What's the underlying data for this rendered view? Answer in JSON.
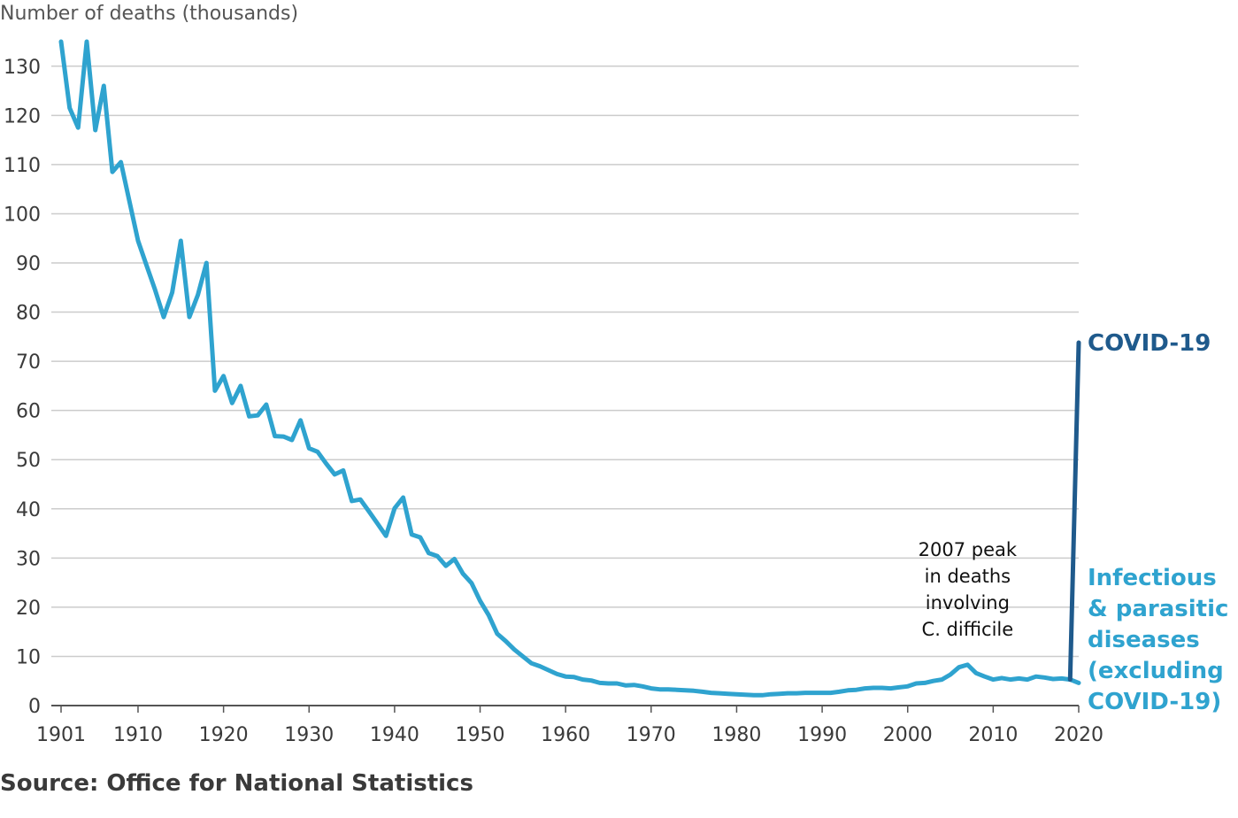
{
  "chart_data": {
    "type": "line",
    "ylabel": "Number of deaths (thousands)",
    "xlim": [
      1901,
      2020
    ],
    "ylim": [
      0,
      135
    ],
    "yticks": [
      0,
      10,
      20,
      30,
      40,
      50,
      60,
      70,
      80,
      90,
      100,
      110,
      120,
      130
    ],
    "xticks": [
      1901,
      1910,
      1920,
      1930,
      1940,
      1950,
      1960,
      1970,
      1980,
      1990,
      2000,
      2010,
      2020
    ],
    "grid": "horizontal",
    "colors": {
      "infectious": "#2fa3cf",
      "covid": "#1f5a8c",
      "grid": "#cccccc",
      "axis": "#555555"
    },
    "series": [
      {
        "name": "Infectious & parasitic diseases (excluding COVID-19)",
        "label_lines": [
          "Infectious",
          "& parasitic",
          "diseases",
          "(excluding",
          "COVID-19)"
        ],
        "x": [
          1901,
          1902,
          1903,
          1904,
          1905,
          1906,
          1907,
          1908,
          1909,
          1910,
          1911,
          1912,
          1913,
          1914,
          1915,
          1916,
          1917,
          1918,
          1919,
          1920,
          1921,
          1922,
          1923,
          1924,
          1925,
          1926,
          1927,
          1928,
          1929,
          1930,
          1931,
          1932,
          1933,
          1934,
          1935,
          1936,
          1937,
          1938,
          1939,
          1940,
          1941,
          1942,
          1943,
          1944,
          1945,
          1946,
          1947,
          1948,
          1949,
          1950,
          1951,
          1952,
          1953,
          1954,
          1955,
          1956,
          1957,
          1958,
          1959,
          1960,
          1961,
          1962,
          1963,
          1964,
          1965,
          1966,
          1967,
          1968,
          1969,
          1970,
          1971,
          1972,
          1973,
          1974,
          1975,
          1976,
          1977,
          1978,
          1979,
          1980,
          1981,
          1982,
          1983,
          1984,
          1985,
          1986,
          1987,
          1988,
          1989,
          1990,
          1991,
          1992,
          1993,
          1994,
          1995,
          1996,
          1997,
          1998,
          1999,
          2000,
          2001,
          2002,
          2003,
          2004,
          2005,
          2006,
          2007,
          2008,
          2009,
          2010,
          2011,
          2012,
          2013,
          2014,
          2015,
          2016,
          2017,
          2018,
          2019,
          2020
        ],
        "values": [
          135,
          121.5,
          117.5,
          135,
          117,
          126,
          108.5,
          110.5,
          102.5,
          94.5,
          89.5,
          84.5,
          79,
          84,
          94.5,
          79,
          83.5,
          90,
          64,
          67,
          61.5,
          65,
          58.8,
          59,
          61.2,
          54.8,
          54.7,
          54,
          58,
          52.3,
          51.6,
          49.2,
          47,
          47.8,
          41.6,
          41.9,
          39.5,
          37,
          34.5,
          40.1,
          42.3,
          34.8,
          34.2,
          31,
          30.4,
          28.4,
          29.8,
          26.8,
          24.9,
          21.3,
          18.4,
          14.6,
          13.1,
          11.4,
          10,
          8.6,
          8,
          7.2,
          6.4,
          5.9,
          5.8,
          5.3,
          5.1,
          4.6,
          4.5,
          4.5,
          4.1,
          4.2,
          3.9,
          3.5,
          3.3,
          3.3,
          3.2,
          3.1,
          3,
          2.8,
          2.6,
          2.5,
          2.4,
          2.3,
          2.2,
          2.1,
          2.1,
          2.3,
          2.4,
          2.5,
          2.5,
          2.6,
          2.6,
          2.6,
          2.6,
          2.8,
          3.1,
          3.2,
          3.5,
          3.6,
          3.6,
          3.5,
          3.7,
          3.9,
          4.5,
          4.6,
          5,
          5.3,
          6.3,
          7.8,
          8.3,
          6.6,
          5.9,
          5.3,
          5.6,
          5.3,
          5.5,
          5.3,
          5.9,
          5.7,
          5.4,
          5.5,
          5.3,
          4.6
        ]
      },
      {
        "name": "COVID-19",
        "x": [
          2019,
          2020
        ],
        "values": [
          5.3,
          73.8
        ]
      }
    ],
    "annotation": {
      "lines": [
        "2007 peak",
        "in deaths",
        "involving",
        "C. difficile"
      ],
      "x": 2007
    },
    "source": "Source: Office for National Statistics"
  }
}
